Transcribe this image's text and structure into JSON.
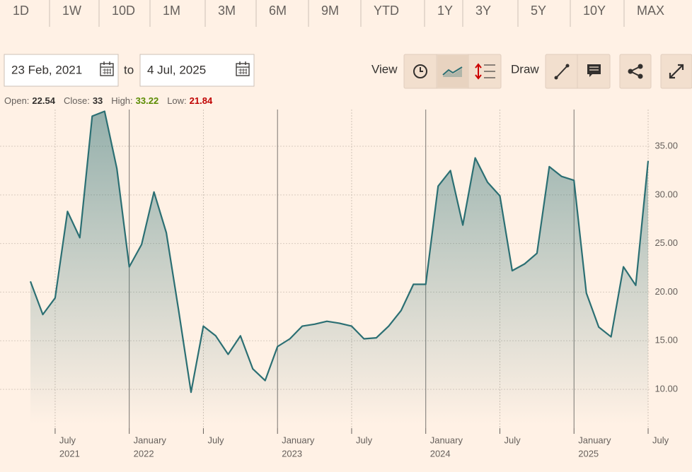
{
  "tabs": [
    "1D",
    "1W",
    "10D",
    "1M",
    "3M",
    "6M",
    "9M",
    "YTD",
    "1Y",
    "3Y",
    "5Y",
    "10Y",
    "MAX"
  ],
  "date_from": "23 Feb, 2021",
  "date_sep": "to",
  "date_to": "4 Jul, 2025",
  "view_label": "View",
  "draw_label": "Draw",
  "ohlc": [
    {
      "label": "Open:",
      "value": "22.54"
    },
    {
      "label": "Close:",
      "value": "33"
    },
    {
      "label": "High:",
      "value": "33.22"
    },
    {
      "label": "Low:",
      "value": "21.84"
    }
  ],
  "chart_data": {
    "type": "line",
    "x": [
      "2021-05",
      "2021-06",
      "2021-07",
      "2021-08",
      "2021-09",
      "2021-10",
      "2021-11",
      "2021-12",
      "2022-01",
      "2022-02",
      "2022-03",
      "2022-04",
      "2022-05",
      "2022-06",
      "2022-07",
      "2022-08",
      "2022-09",
      "2022-10",
      "2022-11",
      "2022-12",
      "2023-01",
      "2023-02",
      "2023-03",
      "2023-04",
      "2023-05",
      "2023-06",
      "2023-07",
      "2023-08",
      "2023-09",
      "2023-10",
      "2023-11",
      "2023-12",
      "2024-01",
      "2024-02",
      "2024-03",
      "2024-04",
      "2024-05",
      "2024-06",
      "2024-07",
      "2024-08",
      "2024-09",
      "2024-10",
      "2024-11",
      "2024-12",
      "2025-01",
      "2025-02",
      "2025-03",
      "2025-04",
      "2025-05",
      "2025-06",
      "2025-07"
    ],
    "series": [
      {
        "color": "#2b6f73",
        "values": [
          21.1,
          17.7,
          19.4,
          28.3,
          25.6,
          38.1,
          38.6,
          32.7,
          22.6,
          24.9,
          30.3,
          26.1,
          18.1,
          9.7,
          16.5,
          15.5,
          13.6,
          15.5,
          12.1,
          10.9,
          14.4,
          15.2,
          16.5,
          16.7,
          17.0,
          16.8,
          16.5,
          15.2,
          15.3,
          16.5,
          18.1,
          20.8,
          20.8,
          30.9,
          32.5,
          26.9,
          33.8,
          31.3,
          29.9,
          22.2,
          22.9,
          24.0,
          32.9,
          31.9,
          31.5,
          19.9,
          16.4,
          15.4,
          22.6,
          20.7,
          33.5
        ]
      }
    ],
    "ylim": [
      6.44,
      38.78
    ],
    "yticks": [
      {
        "value": 10,
        "label": "10.00"
      },
      {
        "value": 15,
        "label": "15.00"
      },
      {
        "value": 20,
        "label": "20.00"
      },
      {
        "value": 25,
        "label": "25.00"
      },
      {
        "value": 30,
        "label": "30.00"
      },
      {
        "value": 35,
        "label": "35.00"
      }
    ],
    "xticks": [
      {
        "value": "2021-07",
        "label": "July",
        "year": "2021"
      },
      {
        "value": "2022-01",
        "label": "January",
        "year": "2022"
      },
      {
        "value": "2022-07",
        "label": "July"
      },
      {
        "value": "2023-01",
        "label": "January",
        "year": "2023"
      },
      {
        "value": "2023-07",
        "label": "July"
      },
      {
        "value": "2024-01",
        "label": "January",
        "year": "2024"
      },
      {
        "value": "2024-07",
        "label": "July"
      },
      {
        "value": "2025-01",
        "label": "January",
        "year": "2025"
      },
      {
        "value": "2025-07",
        "label": "July"
      }
    ],
    "grid": true
  }
}
